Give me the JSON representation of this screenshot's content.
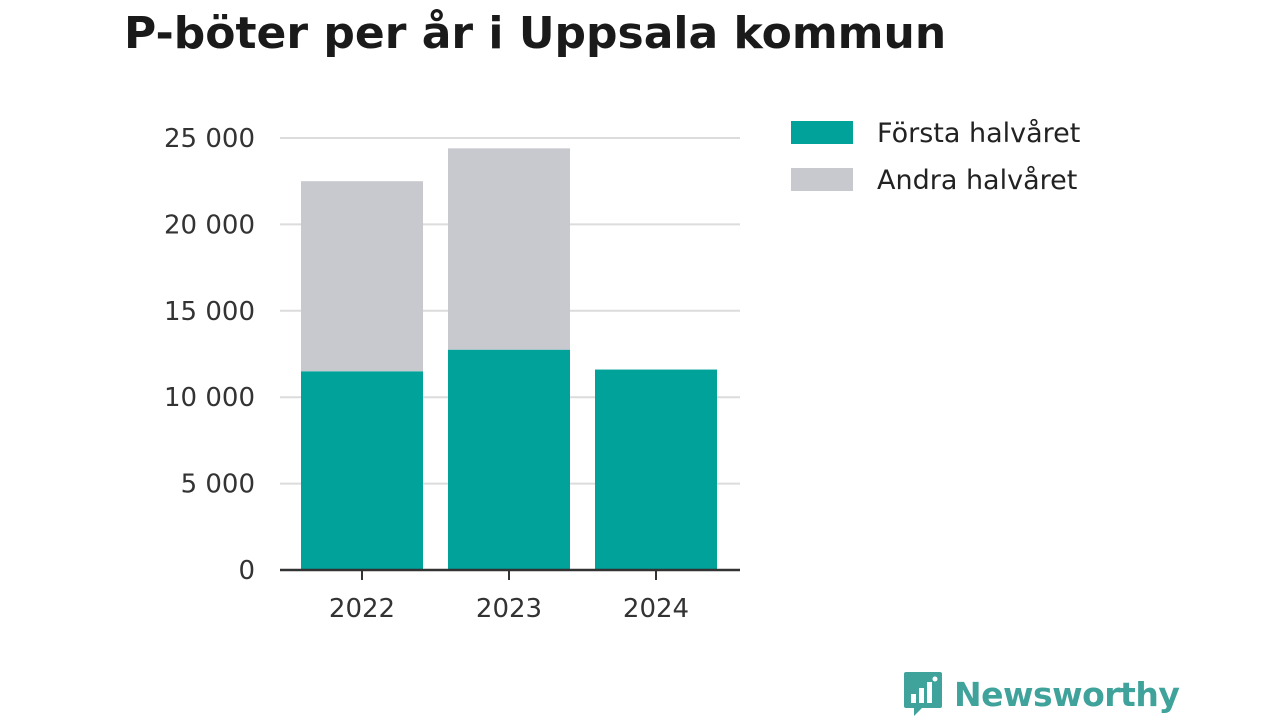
{
  "title": "P-böter per år i Uppsala kommun",
  "brand": {
    "name": "Newsworthy",
    "icon": "bar-chart-speech-bubble-icon",
    "color": "#3fa39b"
  },
  "chart_data": {
    "type": "bar",
    "stacked": true,
    "title": "P-böter per år i Uppsala kommun",
    "xlabel": "",
    "ylabel": "",
    "categories": [
      "2022",
      "2023",
      "2024"
    ],
    "series": [
      {
        "name": "Första halvåret",
        "color": "#00a299",
        "values": [
          11500,
          12750,
          11600
        ]
      },
      {
        "name": "Andra halvåret",
        "color": "#c8c8cf",
        "values": [
          11000,
          11650,
          0
        ]
      }
    ],
    "ylim": [
      0,
      25000
    ],
    "yticks": [
      0,
      5000,
      10000,
      15000,
      20000,
      25000
    ],
    "ytick_labels": [
      "0",
      "5 000",
      "10 000",
      "15 000",
      "20 000",
      "25 000"
    ],
    "grid": true,
    "legend_position": "top-right"
  }
}
